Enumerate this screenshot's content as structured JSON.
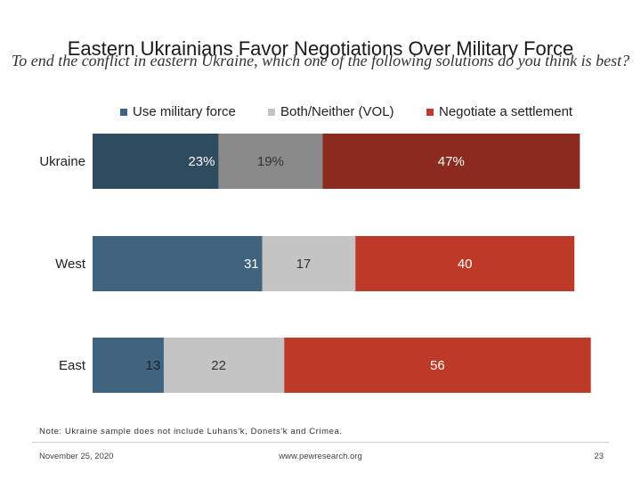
{
  "chart_data": {
    "type": "bar",
    "orientation": "horizontal",
    "stacked": true,
    "title": "Eastern Ukrainians Favor Negotiations Over Military Force",
    "subtitle": "To end the conflict in eastern Ukraine, which one of the following solutions do you think is best?",
    "categories": [
      "Ukraine",
      "West",
      "East"
    ],
    "series": [
      {
        "name": "Use military force",
        "values": [
          23,
          31,
          13
        ],
        "labels": [
          "23%",
          "31",
          "13"
        ],
        "colors": [
          "#2f4b5f",
          "#40637f",
          "#40637f"
        ]
      },
      {
        "name": "Both/Neither (VOL)",
        "values": [
          19,
          17,
          22
        ],
        "labels": [
          "19%",
          "17",
          "22"
        ],
        "colors": [
          "#8a8a8a",
          "#c4c4c4",
          "#c4c4c4"
        ]
      },
      {
        "name": "Negotiate a settlement",
        "values": [
          47,
          40,
          56
        ],
        "labels": [
          "47%",
          "40",
          "56"
        ],
        "colors": [
          "#8b2a1e",
          "#bd3a28",
          "#bd3a28"
        ]
      }
    ],
    "legend": [
      "Use military force",
      "Both/Neither (VOL)",
      "Negotiate a settlement"
    ],
    "legend_colors": [
      "#40637f",
      "#c4c4c4",
      "#bd3a28"
    ],
    "legend_position": "top",
    "xlim": [
      0,
      100
    ],
    "grid": false
  },
  "note": "Note: Ukraine sample does not include Luhans'k, Donets'k and Crimea.",
  "footer": {
    "date": "November 25, 2020",
    "url": "www.pewresearch.org",
    "page": "23"
  }
}
